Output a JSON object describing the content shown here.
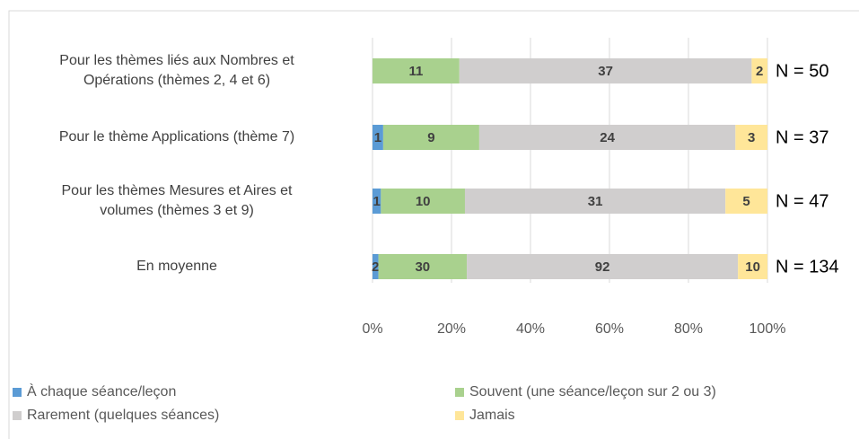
{
  "chart_data": {
    "type": "bar",
    "orientation": "horizontal",
    "stack": "percent",
    "categories": [
      "Pour les thèmes liés aux Nombres et\nOpérations (thèmes 2, 4 et 6)",
      "Pour le thème Applications (thème 7)",
      "Pour les thèmes Mesures et Aires et\nvolumes (thèmes 3 et 9)",
      "En moyenne"
    ],
    "series": [
      {
        "name": "À chaque séance/leçon",
        "color": "#5b9bd5",
        "values": [
          0,
          1,
          1,
          2
        ]
      },
      {
        "name": "Souvent (une séance/leçon sur 2 ou 3)",
        "color": "#a9d18e",
        "values": [
          11,
          9,
          10,
          30
        ]
      },
      {
        "name": "Rarement (quelques séances)",
        "color": "#d0cece",
        "values": [
          37,
          24,
          31,
          92
        ]
      },
      {
        "name": "Jamais",
        "color": "#ffe699",
        "values": [
          2,
          3,
          5,
          10
        ]
      }
    ],
    "annotations": [
      "N = 50",
      "N = 37",
      "N = 47",
      "N = 134"
    ],
    "xlim": [
      0,
      100
    ],
    "xticks": [
      {
        "value": 0,
        "label": "0%"
      },
      {
        "value": 20,
        "label": "20%"
      },
      {
        "value": 40,
        "label": "40%"
      },
      {
        "value": 60,
        "label": "60%"
      },
      {
        "value": 80,
        "label": "80%"
      },
      {
        "value": 100,
        "label": "100%"
      }
    ],
    "grid": true,
    "legend": "bottom"
  }
}
